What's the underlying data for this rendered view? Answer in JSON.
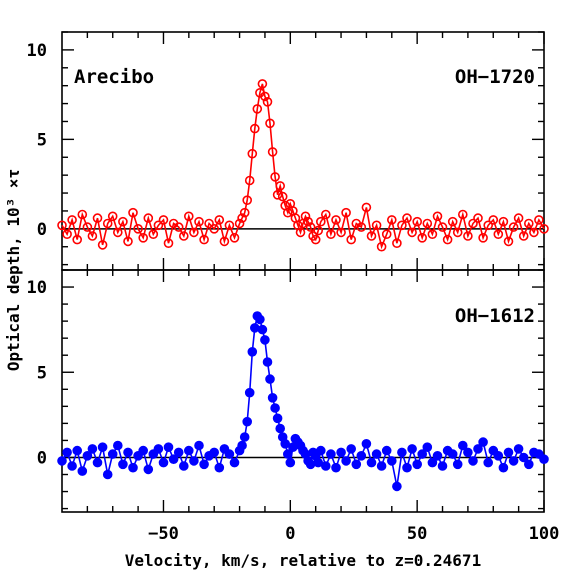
{
  "chart_data": [
    {
      "type": "scatter",
      "panel": "top",
      "title": "",
      "annotations": {
        "left": "Arecibo",
        "right": "OH−1720"
      },
      "xlim": [
        -90,
        100
      ],
      "ylim": [
        -2.3,
        11
      ],
      "xticks": [
        -50,
        0,
        50,
        100
      ],
      "xtick_labels": [],
      "yticks": [
        0,
        5,
        10
      ],
      "ytick_labels": [
        "0",
        "5",
        "10"
      ],
      "zero_line": true,
      "series": [
        {
          "color": "#ff0000",
          "marker": "open-circle",
          "x": [
            -90,
            -88,
            -86,
            -84,
            -82,
            -80,
            -78,
            -76,
            -74,
            -72,
            -70,
            -68,
            -66,
            -64,
            -62,
            -60,
            -58,
            -56,
            -54,
            -52,
            -50,
            -48,
            -46,
            -44,
            -42,
            -40,
            -38,
            -36,
            -34,
            -32,
            -30,
            -28,
            -26,
            -24,
            -22,
            -20,
            -19,
            -18,
            -17,
            -16,
            -15,
            -14,
            -13,
            -12,
            -11,
            -10,
            -9,
            -8,
            -7,
            -6,
            -5,
            -4,
            -3,
            -2,
            -1,
            0,
            1,
            2,
            3,
            4,
            5,
            6,
            7,
            8,
            9,
            10,
            11,
            12,
            14,
            16,
            18,
            20,
            22,
            24,
            26,
            28,
            30,
            32,
            34,
            36,
            38,
            40,
            42,
            44,
            46,
            48,
            50,
            52,
            54,
            56,
            58,
            60,
            62,
            64,
            66,
            68,
            70,
            72,
            74,
            76,
            78,
            80,
            82,
            84,
            86,
            88,
            90,
            92,
            94,
            96,
            98,
            100
          ],
          "y": [
            0.2,
            -0.3,
            0.5,
            -0.6,
            0.8,
            0.1,
            -0.4,
            0.6,
            -0.9,
            0.3,
            0.7,
            -0.2,
            0.4,
            -0.7,
            0.9,
            0.0,
            -0.5,
            0.6,
            -0.3,
            0.2,
            0.5,
            -0.8,
            0.3,
            0.1,
            -0.4,
            0.7,
            -0.2,
            0.4,
            -0.6,
            0.3,
            0.0,
            0.5,
            -0.7,
            0.2,
            -0.5,
            0.3,
            0.6,
            0.9,
            1.6,
            2.7,
            4.2,
            5.6,
            6.7,
            7.6,
            8.1,
            7.4,
            7.1,
            5.9,
            4.3,
            2.9,
            1.9,
            2.4,
            1.8,
            1.3,
            0.9,
            1.4,
            1.0,
            0.6,
            0.2,
            -0.2,
            0.3,
            0.7,
            0.4,
            0.1,
            -0.4,
            -0.6,
            -0.1,
            0.4,
            0.8,
            -0.3,
            0.5,
            -0.2,
            0.9,
            -0.6,
            0.3,
            0.1,
            1.2,
            -0.4,
            0.2,
            -1.0,
            -0.3,
            0.5,
            -0.8,
            0.2,
            0.6,
            -0.2,
            0.4,
            -0.5,
            0.3,
            -0.3,
            0.7,
            0.1,
            -0.6,
            0.4,
            -0.2,
            0.8,
            -0.4,
            0.3,
            0.6,
            -0.5,
            0.2,
            0.5,
            -0.3,
            0.4,
            -0.7,
            0.1,
            0.6,
            -0.4,
            0.3,
            -0.2,
            0.5,
            0.0
          ]
        }
      ]
    },
    {
      "type": "scatter",
      "panel": "bottom",
      "title": "",
      "annotations": {
        "right": "OH−1612"
      },
      "xlim": [
        -90,
        100
      ],
      "ylim": [
        -3.2,
        11
      ],
      "xticks": [
        -50,
        0,
        50,
        100
      ],
      "xtick_labels": [
        "−50",
        "0",
        "50",
        "100"
      ],
      "yticks": [
        0,
        5,
        10
      ],
      "ytick_labels": [
        "0",
        "5",
        "10"
      ],
      "zero_line": true,
      "series": [
        {
          "color": "#0000ff",
          "marker": "filled-circle",
          "x": [
            -90,
            -88,
            -86,
            -84,
            -82,
            -80,
            -78,
            -76,
            -74,
            -72,
            -70,
            -68,
            -66,
            -64,
            -62,
            -60,
            -58,
            -56,
            -54,
            -52,
            -50,
            -48,
            -46,
            -44,
            -42,
            -40,
            -38,
            -36,
            -34,
            -32,
            -30,
            -28,
            -26,
            -24,
            -22,
            -20,
            -19,
            -18,
            -17,
            -16,
            -15,
            -14,
            -13,
            -12,
            -11,
            -10,
            -9,
            -8,
            -7,
            -6,
            -5,
            -4,
            -3,
            -2,
            -1,
            0,
            1,
            2,
            3,
            4,
            5,
            6,
            7,
            8,
            9,
            10,
            11,
            12,
            14,
            16,
            18,
            20,
            22,
            24,
            26,
            28,
            30,
            32,
            34,
            36,
            38,
            40,
            42,
            44,
            46,
            48,
            50,
            52,
            54,
            56,
            58,
            60,
            62,
            64,
            66,
            68,
            70,
            72,
            74,
            76,
            78,
            80,
            82,
            84,
            86,
            88,
            90,
            92,
            94,
            96,
            98,
            100
          ],
          "y": [
            -0.2,
            0.3,
            -0.5,
            0.4,
            -0.8,
            0.1,
            0.5,
            -0.3,
            0.6,
            -1.0,
            0.2,
            0.7,
            -0.4,
            0.3,
            -0.6,
            0.1,
            0.4,
            -0.7,
            0.2,
            0.5,
            -0.3,
            0.6,
            -0.1,
            0.3,
            -0.5,
            0.4,
            -0.2,
            0.7,
            -0.4,
            0.1,
            0.3,
            -0.6,
            0.5,
            0.2,
            -0.3,
            0.4,
            0.7,
            1.2,
            2.1,
            3.8,
            6.2,
            7.6,
            8.3,
            8.1,
            7.5,
            6.9,
            5.6,
            4.6,
            3.5,
            2.9,
            2.3,
            1.7,
            1.2,
            0.8,
            0.2,
            -0.3,
            0.6,
            1.1,
            0.9,
            0.7,
            0.4,
            0.2,
            -0.2,
            -0.4,
            0.3,
            0.1,
            -0.3,
            0.4,
            -0.5,
            0.2,
            -0.6,
            0.3,
            -0.2,
            0.5,
            -0.4,
            0.1,
            0.8,
            -0.3,
            0.2,
            -0.5,
            0.4,
            -0.2,
            -1.7,
            0.3,
            -0.6,
            0.5,
            -0.4,
            0.2,
            0.6,
            -0.3,
            0.1,
            -0.5,
            0.4,
            0.2,
            -0.4,
            0.7,
            0.3,
            -0.2,
            0.5,
            0.9,
            -0.3,
            0.4,
            0.1,
            -0.6,
            0.3,
            -0.2,
            0.5,
            0.0,
            -0.4,
            0.3,
            0.2,
            -0.1
          ]
        }
      ]
    }
  ],
  "shared": {
    "xlabel": "Velocity, km/s, relative to z=0.24671",
    "ylabel": "Optical depth, 10³ ×τ"
  }
}
